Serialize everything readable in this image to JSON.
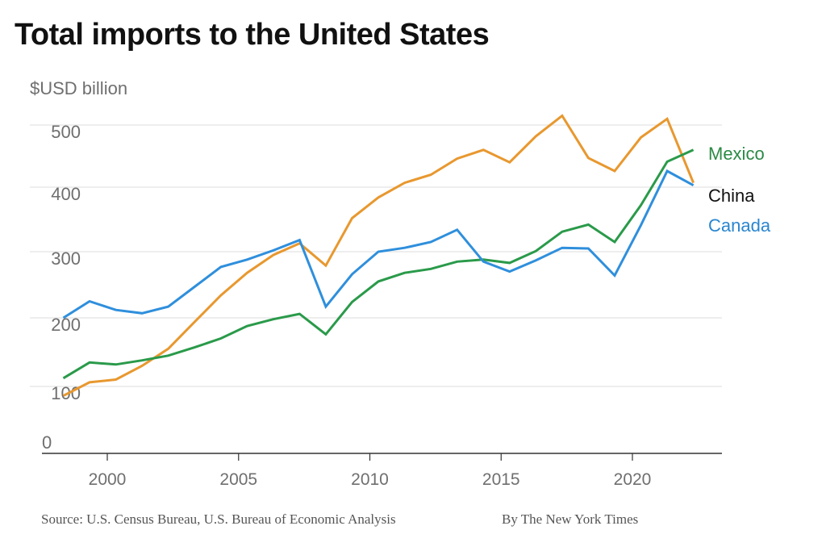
{
  "header": {
    "title": "Total imports to the United States",
    "unit_label": "$USD billion"
  },
  "footer": {
    "source": "Source: U.S. Census Bureau, U.S. Bureau of Economic Analysis",
    "credit": "By The New York Times"
  },
  "chart_data": {
    "type": "line",
    "title": "Total imports to the United States",
    "ylabel": "$USD billion",
    "xlabel": "",
    "ylim": [
      0,
      500
    ],
    "yticks": [
      0,
      100,
      200,
      300,
      400,
      500
    ],
    "ytick_labels": [
      "0",
      "100",
      "200",
      "300",
      "400",
      "500"
    ],
    "xticks": [
      2000,
      2005,
      2010,
      2015,
      2020
    ],
    "xtick_labels": [
      "2000",
      "2005",
      "2010",
      "2015",
      "2020"
    ],
    "grid": true,
    "legend": "direct labels at right end of lines",
    "x": [
      1999,
      2000,
      2001,
      2002,
      2003,
      2004,
      2005,
      2006,
      2007,
      2008,
      2009,
      2010,
      2011,
      2012,
      2013,
      2014,
      2015,
      2016,
      2017,
      2018,
      2019,
      2020,
      2021,
      2022,
      2023
    ],
    "series": [
      {
        "name": "China",
        "color": "#e8982f",
        "label_color": "#111111",
        "values": [
          86,
          106,
          110,
          130,
          155,
          194,
          234,
          268,
          295,
          313,
          279,
          352,
          384,
          407,
          420,
          446,
          460,
          440,
          482,
          515,
          447,
          426,
          480,
          510,
          407
        ]
      },
      {
        "name": "Mexico",
        "color": "#2a9a4a",
        "label_color": "#2a8a45",
        "values": [
          112,
          135,
          132,
          138,
          145,
          157,
          170,
          188,
          198,
          206,
          176,
          224,
          255,
          268,
          274,
          285,
          288,
          283,
          301,
          331,
          342,
          315,
          372,
          441,
          460
        ]
      },
      {
        "name": "Canada",
        "color": "#2f8fdc",
        "label_color": "#2a86d0",
        "values": [
          200,
          225,
          212,
          207,
          217,
          247,
          277,
          288,
          302,
          318,
          217,
          266,
          300,
          306,
          315,
          334,
          285,
          270,
          287,
          306,
          305,
          264,
          341,
          426,
          403
        ]
      }
    ]
  }
}
